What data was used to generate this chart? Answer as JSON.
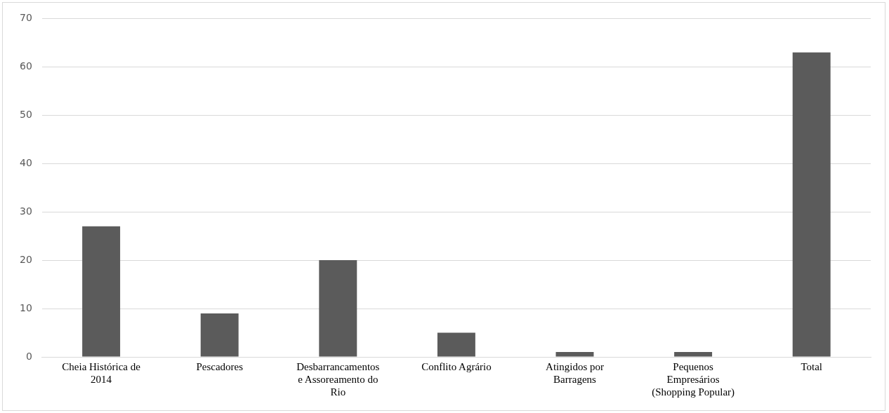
{
  "chart_data": {
    "type": "bar",
    "categories": [
      "Cheia Histórica de 2014",
      "Pescadores",
      "Desbarrancamentos e Assoreamento do Rio",
      "Conflito Agrário",
      "Atingidos por Barragens",
      "Pequenos Empresários (Shopping Popular)",
      "Total"
    ],
    "values": [
      27,
      9,
      20,
      5,
      1,
      1,
      63
    ],
    "color": "#5b5b5b",
    "ylim": [
      0,
      70
    ],
    "yticks": [
      0,
      10,
      20,
      30,
      40,
      50,
      60,
      70
    ],
    "grid": "y",
    "legend": false
  }
}
